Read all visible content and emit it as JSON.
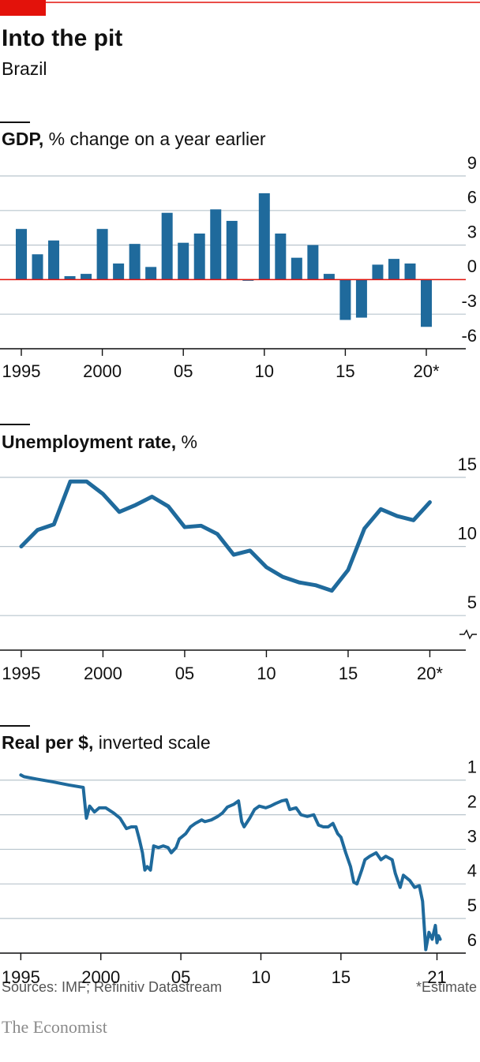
{
  "title": "Into the pit",
  "subtitle": "Brazil",
  "chart_data": [
    {
      "type": "bar",
      "title": "GDP,",
      "subtitle": "% change on a year earlier",
      "categories": [
        "1995",
        null,
        null,
        null,
        null,
        "2000",
        null,
        null,
        null,
        null,
        "05",
        null,
        null,
        null,
        null,
        "10",
        null,
        null,
        null,
        null,
        "15",
        null,
        null,
        null,
        null,
        "20*"
      ],
      "values": [
        4.4,
        2.2,
        3.4,
        0.3,
        0.5,
        4.4,
        1.4,
        3.1,
        1.1,
        5.8,
        3.2,
        4.0,
        6.1,
        5.1,
        -0.1,
        7.5,
        4.0,
        1.9,
        3.0,
        0.5,
        -3.5,
        -3.3,
        1.3,
        1.8,
        1.4,
        -4.1
      ],
      "color": "#1f6a9c",
      "zero_line_color": "#e3120b",
      "ylim": [
        -6,
        9
      ],
      "yticks": [
        -6,
        -3,
        0,
        3,
        6,
        9
      ],
      "grid": true
    },
    {
      "type": "line",
      "title": "Unemployment rate,",
      "subtitle": "%",
      "x": [
        1995,
        1996,
        1997,
        1998,
        1999,
        2000,
        2001,
        2002,
        2003,
        2004,
        2005,
        2006,
        2007,
        2008,
        2009,
        2010,
        2011,
        2012,
        2013,
        2014,
        2015,
        2016,
        2017,
        2018,
        2019,
        2020
      ],
      "values": [
        10.0,
        11.2,
        11.6,
        14.7,
        14.7,
        13.8,
        12.5,
        13.0,
        13.6,
        12.9,
        11.4,
        11.5,
        10.9,
        9.4,
        9.7,
        8.5,
        7.8,
        7.4,
        7.2,
        6.8,
        8.3,
        11.3,
        12.7,
        12.2,
        11.9,
        13.2
      ],
      "color": "#1f6a9c",
      "axis_break": true,
      "xlim": [
        1993.7,
        2022.2
      ],
      "xticks": [
        1995,
        2000,
        {
          "value": 2005,
          "label": "05"
        },
        {
          "value": 2010,
          "label": "10"
        },
        {
          "value": 2015,
          "label": "15"
        },
        {
          "value": 2020,
          "label": "20*"
        }
      ],
      "ylim": [
        2.5,
        15
      ],
      "yticks": [
        5,
        10,
        15
      ],
      "grid": true
    },
    {
      "type": "line",
      "title": "Real per $,",
      "subtitle": "inverted scale",
      "x": [
        1995.0,
        1995.2,
        1996,
        1997,
        1998,
        1998.9,
        1999.05,
        1999.1,
        1999.3,
        1999.6,
        1999.9,
        2000.3,
        2000.8,
        2001.2,
        2001.6,
        2001.9,
        2002.2,
        2002.4,
        2002.6,
        2002.75,
        2002.9,
        2003.1,
        2003.3,
        2003.6,
        2003.9,
        2004.2,
        2004.4,
        2004.7,
        2004.9,
        2005.3,
        2005.6,
        2005.9,
        2006.3,
        2006.5,
        2006.9,
        2007.3,
        2007.6,
        2007.9,
        2008.3,
        2008.6,
        2008.8,
        2008.95,
        2009.3,
        2009.6,
        2009.9,
        2010.3,
        2010.6,
        2010.9,
        2011.3,
        2011.6,
        2011.8,
        2012.2,
        2012.5,
        2012.9,
        2013.3,
        2013.6,
        2013.9,
        2014.2,
        2014.5,
        2014.8,
        2015.0,
        2015.3,
        2015.6,
        2015.8,
        2016.0,
        2016.3,
        2016.5,
        2016.8,
        2017.2,
        2017.5,
        2017.8,
        2018.2,
        2018.4,
        2018.7,
        2018.9,
        2019.3,
        2019.6,
        2019.9,
        2020.1,
        2020.3,
        2020.5,
        2020.7,
        2020.9,
        2021.0,
        2021.1,
        2021.2
      ],
      "values": [
        0.85,
        0.9,
        0.97,
        1.05,
        1.14,
        1.21,
        1.9,
        2.1,
        1.75,
        1.92,
        1.8,
        1.8,
        1.95,
        2.1,
        2.4,
        2.35,
        2.35,
        2.7,
        3.1,
        3.6,
        3.5,
        3.6,
        2.9,
        2.95,
        2.9,
        2.95,
        3.1,
        2.95,
        2.7,
        2.55,
        2.35,
        2.25,
        2.15,
        2.2,
        2.15,
        2.05,
        1.95,
        1.78,
        1.7,
        1.6,
        2.2,
        2.35,
        2.1,
        1.85,
        1.75,
        1.8,
        1.75,
        1.68,
        1.6,
        1.57,
        1.85,
        1.8,
        2.0,
        2.05,
        2.0,
        2.3,
        2.35,
        2.35,
        2.25,
        2.55,
        2.65,
        3.1,
        3.5,
        3.95,
        4.0,
        3.6,
        3.3,
        3.2,
        3.1,
        3.3,
        3.2,
        3.3,
        3.7,
        4.1,
        3.75,
        3.9,
        4.1,
        4.05,
        4.5,
        5.9,
        5.4,
        5.6,
        5.2,
        5.7,
        5.5,
        5.6
      ],
      "color": "#1f6a9c",
      "inverted": true,
      "xlim": [
        1993.7,
        2022.8
      ],
      "xticks": [
        1995,
        2000,
        {
          "value": 2005,
          "label": "05"
        },
        {
          "value": 2010,
          "label": "10"
        },
        {
          "value": 2015,
          "label": "15"
        },
        {
          "value": 2021,
          "label": "21"
        }
      ],
      "ylim": [
        0.8,
        6
      ],
      "yticks": [
        1,
        2,
        3,
        4,
        5,
        6
      ],
      "grid": true
    }
  ],
  "footer": {
    "sources": "Sources: IMF; Refinitiv Datastream",
    "note": "*Estimate",
    "brand": "The Economist"
  }
}
